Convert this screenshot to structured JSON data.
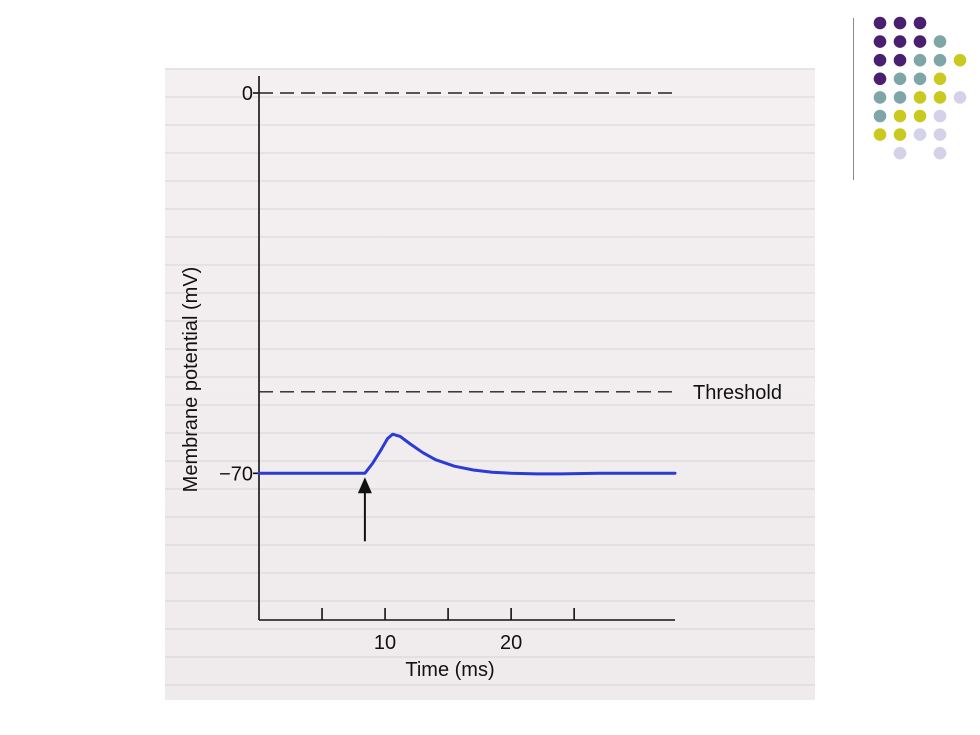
{
  "chart_data": {
    "type": "line",
    "title": "",
    "xlabel": "Time (ms)",
    "ylabel": "Membrane potential (mV)",
    "xlim": [
      0,
      33
    ],
    "ylim": [
      -97,
      0
    ],
    "x_ticks": [
      5,
      10,
      15,
      20,
      25
    ],
    "x_tick_labels": [
      {
        "x": 10,
        "label": "10"
      },
      {
        "x": 20,
        "label": "20"
      }
    ],
    "y_tick_labels": [
      {
        "y": 0,
        "label": "0"
      },
      {
        "y": -70,
        "label": "−70"
      }
    ],
    "reference_lines": [
      {
        "y": 0,
        "style": "dashed",
        "label": ""
      },
      {
        "y": -55,
        "style": "dashed",
        "label": "Threshold"
      }
    ],
    "stimulus_arrow": {
      "x": 8.4
    },
    "series": [
      {
        "name": "",
        "color": "#2a3bd6",
        "x": [
          0,
          8.4,
          9.0,
          9.6,
          10.2,
          10.6,
          11.2,
          12.0,
          13.0,
          14.0,
          15.5,
          17.0,
          18.5,
          20.0,
          22.0,
          24.0,
          27.0,
          30.0,
          33.0
        ],
        "y": [
          -70,
          -70,
          -68.2,
          -66.0,
          -63.6,
          -62.8,
          -63.2,
          -64.6,
          -66.2,
          -67.5,
          -68.7,
          -69.4,
          -69.8,
          -70.0,
          -70.1,
          -70.1,
          -70.0,
          -70.0,
          -70.0
        ]
      }
    ],
    "grid": false,
    "legend": "none"
  },
  "decor": {
    "dot_colors": {
      "purple": "#4b1f6f",
      "teal": "#7fa6a6",
      "yellow": "#c9c91f",
      "lavender": "#d4d2e8"
    },
    "dot_grid": [
      [
        "purple",
        "purple",
        "purple",
        "",
        ""
      ],
      [
        "purple",
        "purple",
        "purple",
        "teal",
        ""
      ],
      [
        "purple",
        "purple",
        "teal",
        "teal",
        "yellow"
      ],
      [
        "purple",
        "teal",
        "teal",
        "yellow",
        ""
      ],
      [
        "teal",
        "teal",
        "yellow",
        "yellow",
        "lavender"
      ],
      [
        "teal",
        "yellow",
        "yellow",
        "lavender",
        ""
      ],
      [
        "yellow",
        "yellow",
        "lavender",
        "lavender",
        ""
      ],
      [
        "",
        "lavender",
        "",
        "lavender",
        ""
      ]
    ]
  }
}
